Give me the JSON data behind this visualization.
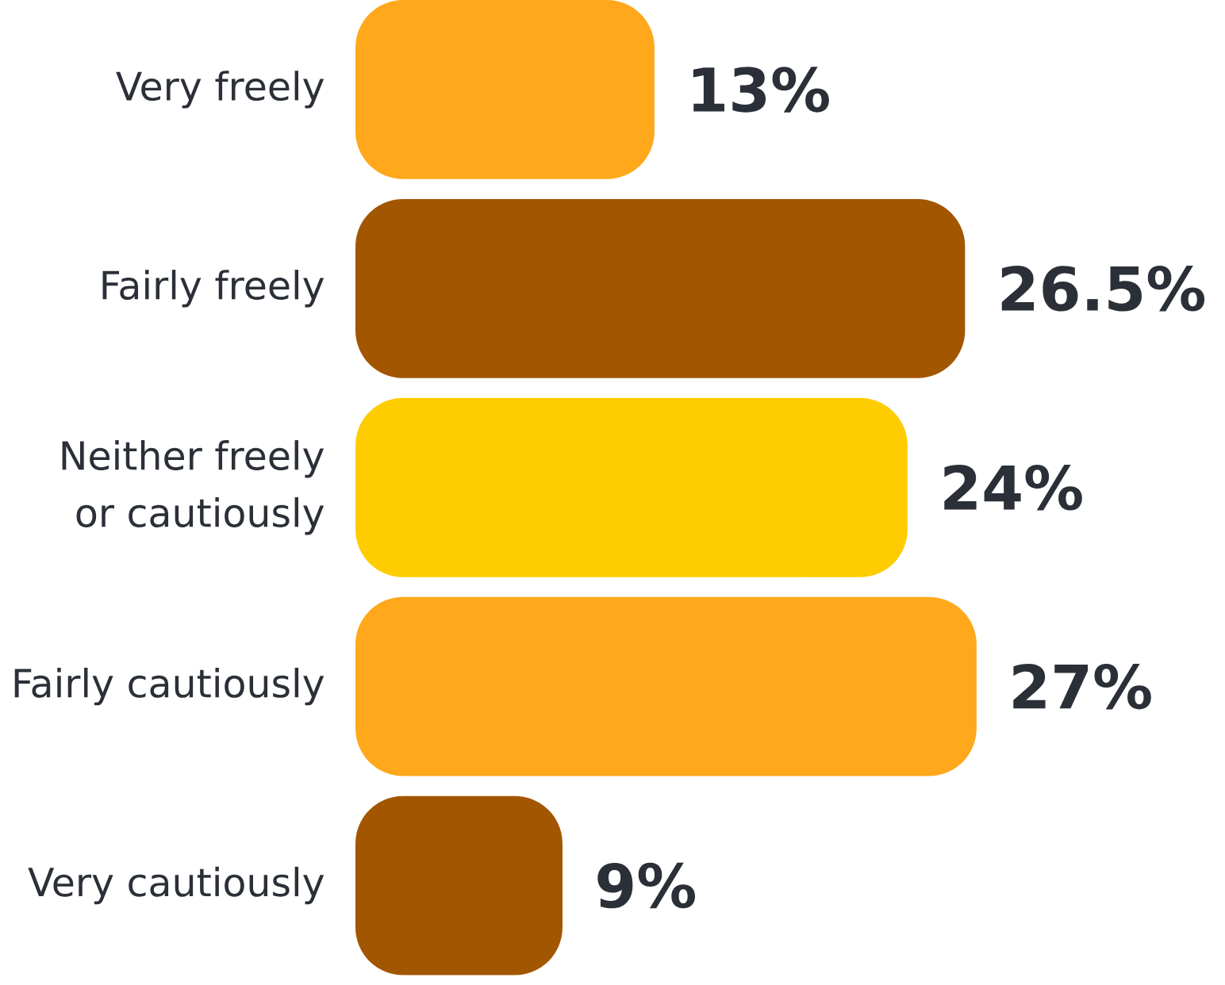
{
  "chart_data": {
    "type": "bar",
    "orientation": "horizontal",
    "categories": [
      "Very freely",
      "Fairly freely",
      "Neither freely or cautiously",
      "Fairly cautiously",
      "Very cautiously"
    ],
    "values": [
      13,
      26.5,
      24,
      27,
      9
    ],
    "colors": [
      "#ffa81c",
      "#a35600",
      "#ffcc00",
      "#ffa81c",
      "#a35600"
    ],
    "value_labels": [
      "13%",
      "26.5%",
      "24%",
      "27%",
      "9%"
    ]
  }
}
